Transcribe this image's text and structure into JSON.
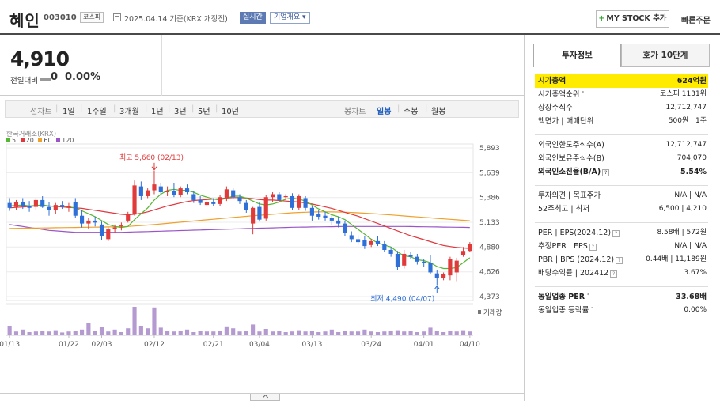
{
  "header": {
    "company_name": "혜인",
    "stock_code": "003010",
    "market_badge": "코스피",
    "date_text": "2025.04.14 기준(KRX 개장전)",
    "realtime_label": "실시간",
    "overview_label": "기업개요 ▾",
    "mystock_label": "MY STOCK 추가",
    "quick_order_label": "빠른주문"
  },
  "price": {
    "current": "4,910",
    "change_label": "전일대비",
    "change_value": "0",
    "change_pct": "0.00%"
  },
  "period_tabs": {
    "left": [
      "선차트",
      "1일",
      "1주일",
      "3개월",
      "1년",
      "3년",
      "5년",
      "10년"
    ],
    "right": [
      "봉차트",
      "일봉",
      "주봉",
      "월봉"
    ],
    "active": "일봉"
  },
  "chart_data": {
    "type": "candlestick",
    "source_label": "한국거래소(KRX)",
    "ma_legend": [
      {
        "label": "5",
        "color": "#55b832"
      },
      {
        "label": "20",
        "color": "#e0383e"
      },
      {
        "label": "60",
        "color": "#f0a02b"
      },
      {
        "label": "120",
        "color": "#9a55c8"
      }
    ],
    "y_ticks": [
      "5,893",
      "5,639",
      "5,386",
      "5,133",
      "4,880",
      "4,626",
      "4,373"
    ],
    "y_range": [
      4373,
      5893
    ],
    "x_labels": [
      "01/13",
      "01/22",
      "02/03",
      "02/12",
      "02/21",
      "03/04",
      "03/13",
      "03/24",
      "04/01",
      "04/10"
    ],
    "high_annotation": "최고 5,660 (02/13)",
    "low_annotation": "최저 4,490 (04/07)",
    "volume_label": "거래량",
    "candles": [
      {
        "o": 5330,
        "h": 5380,
        "l": 5250,
        "c": 5280
      },
      {
        "o": 5290,
        "h": 5360,
        "l": 5260,
        "c": 5340
      },
      {
        "o": 5340,
        "h": 5380,
        "l": 5270,
        "c": 5300
      },
      {
        "o": 5300,
        "h": 5350,
        "l": 5240,
        "c": 5280
      },
      {
        "o": 5290,
        "h": 5380,
        "l": 5260,
        "c": 5360
      },
      {
        "o": 5360,
        "h": 5400,
        "l": 5280,
        "c": 5290
      },
      {
        "o": 5290,
        "h": 5340,
        "l": 5200,
        "c": 5260
      },
      {
        "o": 5260,
        "h": 5330,
        "l": 5220,
        "c": 5310
      },
      {
        "o": 5310,
        "h": 5350,
        "l": 5270,
        "c": 5290
      },
      {
        "o": 5280,
        "h": 5330,
        "l": 5240,
        "c": 5300
      },
      {
        "o": 5340,
        "h": 5380,
        "l": 5180,
        "c": 5200
      },
      {
        "o": 5200,
        "h": 5260,
        "l": 5080,
        "c": 5120
      },
      {
        "o": 5120,
        "h": 5180,
        "l": 5060,
        "c": 5150
      },
      {
        "o": 5150,
        "h": 5190,
        "l": 5090,
        "c": 5130
      },
      {
        "o": 5110,
        "h": 5140,
        "l": 4950,
        "c": 4990
      },
      {
        "o": 4960,
        "h": 5080,
        "l": 4940,
        "c": 5060
      },
      {
        "o": 5060,
        "h": 5110,
        "l": 5020,
        "c": 5080
      },
      {
        "o": 5090,
        "h": 5130,
        "l": 5050,
        "c": 5100
      },
      {
        "o": 5150,
        "h": 5240,
        "l": 5130,
        "c": 5220
      },
      {
        "o": 5220,
        "h": 5560,
        "l": 5200,
        "c": 5510
      },
      {
        "o": 5500,
        "h": 5550,
        "l": 5360,
        "c": 5400
      },
      {
        "o": 5400,
        "h": 5480,
        "l": 5380,
        "c": 5460
      },
      {
        "o": 5460,
        "h": 5660,
        "l": 5420,
        "c": 5520
      },
      {
        "o": 5500,
        "h": 5530,
        "l": 5420,
        "c": 5440
      },
      {
        "o": 5440,
        "h": 5500,
        "l": 5400,
        "c": 5450
      },
      {
        "o": 5450,
        "h": 5530,
        "l": 5390,
        "c": 5410
      },
      {
        "o": 5410,
        "h": 5500,
        "l": 5390,
        "c": 5480
      },
      {
        "o": 5480,
        "h": 5520,
        "l": 5420,
        "c": 5440
      },
      {
        "o": 5420,
        "h": 5450,
        "l": 5330,
        "c": 5360
      },
      {
        "o": 5360,
        "h": 5400,
        "l": 5310,
        "c": 5330
      },
      {
        "o": 5310,
        "h": 5360,
        "l": 5290,
        "c": 5340
      },
      {
        "o": 5340,
        "h": 5380,
        "l": 5300,
        "c": 5320
      },
      {
        "o": 5320,
        "h": 5410,
        "l": 5300,
        "c": 5390
      },
      {
        "o": 5380,
        "h": 5500,
        "l": 5350,
        "c": 5470
      },
      {
        "o": 5460,
        "h": 5480,
        "l": 5370,
        "c": 5390
      },
      {
        "o": 5390,
        "h": 5420,
        "l": 5320,
        "c": 5350
      },
      {
        "o": 5330,
        "h": 5360,
        "l": 5230,
        "c": 5260
      },
      {
        "o": 5120,
        "h": 5290,
        "l": 5010,
        "c": 5280
      },
      {
        "o": 5290,
        "h": 5340,
        "l": 5140,
        "c": 5160
      },
      {
        "o": 5170,
        "h": 5410,
        "l": 5150,
        "c": 5390
      },
      {
        "o": 5390,
        "h": 5440,
        "l": 5340,
        "c": 5420
      },
      {
        "o": 5420,
        "h": 5440,
        "l": 5340,
        "c": 5360
      },
      {
        "o": 5390,
        "h": 5420,
        "l": 5360,
        "c": 5400
      },
      {
        "o": 5400,
        "h": 5430,
        "l": 5260,
        "c": 5280
      },
      {
        "o": 5280,
        "h": 5420,
        "l": 5260,
        "c": 5400
      },
      {
        "o": 5380,
        "h": 5400,
        "l": 5250,
        "c": 5280
      },
      {
        "o": 5280,
        "h": 5300,
        "l": 5150,
        "c": 5200
      },
      {
        "o": 5220,
        "h": 5260,
        "l": 5160,
        "c": 5190
      },
      {
        "o": 5200,
        "h": 5240,
        "l": 5150,
        "c": 5180
      },
      {
        "o": 5180,
        "h": 5220,
        "l": 5100,
        "c": 5150
      },
      {
        "o": 5150,
        "h": 5190,
        "l": 5080,
        "c": 5120
      },
      {
        "o": 5120,
        "h": 5150,
        "l": 4990,
        "c": 5020
      },
      {
        "o": 5000,
        "h": 5040,
        "l": 4930,
        "c": 4960
      },
      {
        "o": 4960,
        "h": 5000,
        "l": 4900,
        "c": 4930
      },
      {
        "o": 4950,
        "h": 4990,
        "l": 4860,
        "c": 4890
      },
      {
        "o": 4900,
        "h": 4960,
        "l": 4880,
        "c": 4940
      },
      {
        "o": 4940,
        "h": 4990,
        "l": 4890,
        "c": 4910
      },
      {
        "o": 4910,
        "h": 4940,
        "l": 4830,
        "c": 4850
      },
      {
        "o": 4850,
        "h": 4880,
        "l": 4780,
        "c": 4810
      },
      {
        "o": 4810,
        "h": 4840,
        "l": 4640,
        "c": 4680
      },
      {
        "o": 4690,
        "h": 4850,
        "l": 4660,
        "c": 4810
      },
      {
        "o": 4800,
        "h": 4830,
        "l": 4760,
        "c": 4780
      },
      {
        "o": 4780,
        "h": 4810,
        "l": 4700,
        "c": 4730
      },
      {
        "o": 4730,
        "h": 4760,
        "l": 4680,
        "c": 4720
      },
      {
        "o": 4720,
        "h": 4800,
        "l": 4600,
        "c": 4620
      },
      {
        "o": 4610,
        "h": 4640,
        "l": 4490,
        "c": 4560
      },
      {
        "o": 4560,
        "h": 4620,
        "l": 4540,
        "c": 4600
      },
      {
        "o": 4590,
        "h": 4780,
        "l": 4540,
        "c": 4760
      },
      {
        "o": 4620,
        "h": 4770,
        "l": 4530,
        "c": 4740
      },
      {
        "o": 4800,
        "h": 4880,
        "l": 4780,
        "c": 4840
      },
      {
        "o": 4840,
        "h": 4930,
        "l": 4830,
        "c": 4910
      }
    ],
    "ma5": [
      5300,
      5305,
      5310,
      5300,
      5305,
      5310,
      5300,
      5295,
      5300,
      5290,
      5280,
      5250,
      5220,
      5190,
      5150,
      5110,
      5090,
      5080,
      5090,
      5160,
      5220,
      5280,
      5360,
      5420,
      5460,
      5470,
      5460,
      5460,
      5440,
      5410,
      5390,
      5370,
      5360,
      5380,
      5400,
      5400,
      5380,
      5350,
      5320,
      5310,
      5320,
      5340,
      5370,
      5380,
      5370,
      5350,
      5310,
      5270,
      5240,
      5210,
      5190,
      5160,
      5110,
      5060,
      5010,
      4960,
      4920,
      4900,
      4880,
      4830,
      4790,
      4780,
      4750,
      4740,
      4720,
      4680,
      4660,
      4660,
      4670,
      4720,
      4770
    ],
    "ma20": [
      5280,
      5285,
      5290,
      5295,
      5300,
      5300,
      5300,
      5295,
      5290,
      5285,
      5280,
      5275,
      5265,
      5255,
      5245,
      5235,
      5225,
      5215,
      5210,
      5215,
      5225,
      5240,
      5260,
      5280,
      5300,
      5315,
      5330,
      5345,
      5355,
      5360,
      5365,
      5370,
      5375,
      5380,
      5385,
      5385,
      5380,
      5375,
      5365,
      5360,
      5360,
      5355,
      5350,
      5345,
      5340,
      5330,
      5320,
      5305,
      5290,
      5275,
      5255,
      5235,
      5215,
      5195,
      5170,
      5145,
      5120,
      5095,
      5070,
      5045,
      5020,
      4995,
      4975,
      4955,
      4935,
      4915,
      4895,
      4885,
      4875,
      4870,
      4865
    ],
    "ma60": [
      5070,
      5071,
      5072,
      5073,
      5074,
      5075,
      5076,
      5077,
      5078,
      5079,
      5080,
      5081,
      5082,
      5083,
      5084,
      5085,
      5086,
      5088,
      5090,
      5095,
      5100,
      5105,
      5110,
      5116,
      5122,
      5128,
      5134,
      5140,
      5146,
      5152,
      5158,
      5164,
      5170,
      5176,
      5182,
      5188,
      5194,
      5200,
      5205,
      5210,
      5215,
      5220,
      5225,
      5230,
      5233,
      5236,
      5238,
      5240,
      5240,
      5239,
      5238,
      5236,
      5233,
      5230,
      5226,
      5222,
      5218,
      5213,
      5208,
      5203,
      5198,
      5193,
      5188,
      5183,
      5178,
      5173,
      5168,
      5163,
      5158,
      5153,
      5148
    ],
    "ma120": [
      5110,
      5100,
      5090,
      5080,
      5070,
      5060,
      5050,
      5045,
      5040,
      5035,
      5030,
      5030,
      5030,
      5030,
      5030,
      5030,
      5030,
      5030,
      5032,
      5034,
      5036,
      5038,
      5040,
      5042,
      5044,
      5046,
      5048,
      5050,
      5052,
      5054,
      5056,
      5058,
      5060,
      5062,
      5064,
      5066,
      5068,
      5070,
      5072,
      5074,
      5076,
      5078,
      5080,
      5082,
      5083,
      5084,
      5085,
      5086,
      5087,
      5088,
      5089,
      5090,
      5090,
      5090,
      5090,
      5090,
      5090,
      5090,
      5090,
      5090,
      5090,
      5089,
      5088,
      5087,
      5086,
      5085,
      5084,
      5083,
      5082,
      5081,
      5080
    ],
    "volume": [
      30,
      12,
      18,
      10,
      12,
      14,
      12,
      16,
      9,
      12,
      14,
      18,
      38,
      14,
      26,
      12,
      18,
      10,
      22,
      90,
      30,
      22,
      88,
      24,
      14,
      12,
      14,
      18,
      10,
      14,
      12,
      12,
      14,
      28,
      22,
      12,
      14,
      34,
      12,
      20,
      12,
      14,
      10,
      12,
      16,
      12,
      14,
      10,
      12,
      18,
      10,
      14,
      12,
      12,
      18,
      12,
      10,
      12,
      14,
      16,
      12,
      14,
      10,
      12,
      24,
      14,
      10,
      14,
      12,
      16,
      12
    ]
  },
  "info_panel": {
    "tabs": [
      "투자정보",
      "호가 10단계"
    ],
    "market_cap": {
      "label": "시가총액",
      "value": "624억원"
    },
    "group1": [
      {
        "label": "시가총액순위",
        "value": "코스피 1131위"
      },
      {
        "label": "상장주식수",
        "value": "12,712,747"
      },
      {
        "label": "액면가 | 매매단위",
        "value": "500원 | 1주"
      }
    ],
    "group2": [
      {
        "label": "외국인한도주식수(A)",
        "value": "12,712,747"
      },
      {
        "label": "외국인보유주식수(B)",
        "value": "704,070"
      },
      {
        "label": "외국인소진율(B/A)",
        "value": "5.54%"
      }
    ],
    "group3": [
      {
        "label": "투자의견 | 목표주가",
        "value": "N/A | N/A"
      },
      {
        "label": "52주최고 | 최저",
        "value": "6,500 | 4,210"
      }
    ],
    "group4": [
      {
        "label": "PER | EPS(2024.12)",
        "value": "8.58배 | 572원"
      },
      {
        "label": "추정PER | EPS",
        "value": "N/A | N/A"
      },
      {
        "label": "PBR | BPS (2024.12)",
        "value": "0.44배 | 11,189원"
      },
      {
        "label": "배당수익률 | 202412",
        "value": "3.67%"
      }
    ],
    "group5": [
      {
        "label": "동일업종 PER",
        "value": "33.68배"
      },
      {
        "label": "동일업종 등락률",
        "value": "0.00%"
      }
    ]
  }
}
